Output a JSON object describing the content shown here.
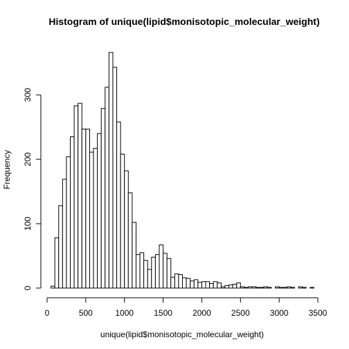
{
  "chart_data": {
    "type": "bar",
    "title": "Histogram of unique(lipid$monisotopic_molecular_weight)",
    "xlabel": "unique(lipid$monisotopic_molecular_weight)",
    "ylabel": "Frequency",
    "xlim": [
      0,
      3500
    ],
    "ylim": [
      0,
      370
    ],
    "bin_width": 50,
    "bin_start": 50,
    "x_ticks": [
      0,
      500,
      1000,
      1500,
      2000,
      2500,
      3000,
      3500
    ],
    "y_ticks": [
      0,
      100,
      200,
      300
    ],
    "values": [
      3,
      78,
      128,
      169,
      204,
      235,
      283,
      287,
      247,
      247,
      211,
      217,
      240,
      279,
      312,
      366,
      343,
      258,
      208,
      182,
      148,
      102,
      52,
      55,
      43,
      29,
      48,
      52,
      67,
      54,
      46,
      17,
      22,
      21,
      16,
      15,
      11,
      13,
      9,
      10,
      10,
      7,
      10,
      8,
      2,
      4,
      5,
      6,
      8,
      2,
      1,
      2,
      2,
      1,
      1,
      2,
      1,
      0,
      2,
      1,
      1,
      2,
      1,
      0,
      2,
      1,
      0,
      1
    ]
  }
}
